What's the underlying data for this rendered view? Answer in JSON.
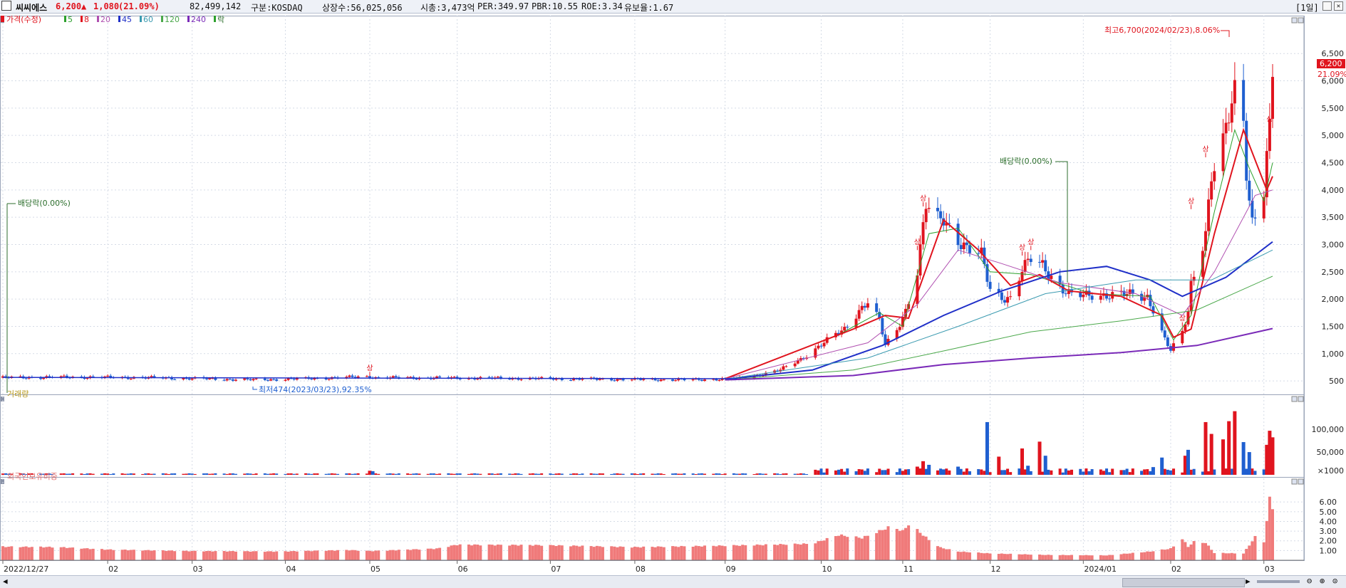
{
  "header": {
    "name": "씨씨에스",
    "price": "6,200",
    "change_arrow": "▲",
    "change": "1,080",
    "change_pct": "(21.09%)",
    "volume": "82,499,142",
    "market": "구분:KOSDAQ",
    "shares": "상장수:56,025,056",
    "mcap": "시총:3,473억",
    "per": "PER:349.97",
    "pbr": "PBR:10.55",
    "roe": "ROE:3.34",
    "reserve": "유보율:1.67",
    "period": "[1일]"
  },
  "legend": {
    "price": "가격(수정)",
    "ma5": "5",
    "ma8": "8",
    "ma20": "20",
    "ma45": "45",
    "ma60": "60",
    "ma120": "120",
    "ma240": "240",
    "drop": "락"
  },
  "annotations": {
    "max": "최고6,700(2024/02/23),8.06%",
    "min": "최저474(2023/03/23),92.35%",
    "div1": "배당락(0.00%)",
    "div2": "배당락(0.00%)"
  },
  "price_badge": {
    "value": "6,200",
    "pct": "21.09%"
  },
  "panels": {
    "volume_title": "거래량",
    "foreign_title": "외국인보유비중"
  },
  "colors": {
    "up": "#e0141e",
    "down": "#1f5fd0",
    "ma5": "#2ca02c",
    "ma8": "#e0141e",
    "ma20": "#b04fb0",
    "ma45": "#1f2fc8",
    "ma60": "#3a9ab0",
    "ma120": "#4aa84a",
    "ma240": "#7a2ab8",
    "foreign": "#f07a7a"
  },
  "chart_data": [
    {
      "type": "candlestick",
      "title": "씨씨에스",
      "y_ticks": [
        500,
        1000,
        1500,
        2000,
        2500,
        3000,
        3500,
        4000,
        4500,
        5000,
        5500,
        6000,
        6500
      ],
      "y_tick_labels": [
        "500",
        "1,000",
        "1,500",
        "2,000",
        "2,500",
        "3,000",
        "3,500",
        "4,000",
        "4,500",
        "5,000",
        "5,500",
        "6,000",
        "6,500"
      ],
      "ylim": [
        280,
        6920
      ],
      "x_start": "2022-12-27",
      "x_end": "2024-03-07",
      "x_ticks": [
        {
          "date": "2022-12-27",
          "label": "2022/12/27"
        },
        {
          "date": "2023-02-01",
          "label": "02"
        },
        {
          "date": "2023-03-02",
          "label": "03"
        },
        {
          "date": "2023-04-03",
          "label": "04"
        },
        {
          "date": "2023-05-02",
          "label": "05"
        },
        {
          "date": "2023-06-01",
          "label": "06"
        },
        {
          "date": "2023-07-03",
          "label": "07"
        },
        {
          "date": "2023-08-01",
          "label": "08"
        },
        {
          "date": "2023-09-01",
          "label": "09"
        },
        {
          "date": "2023-10-04",
          "label": "10"
        },
        {
          "date": "2023-11-01",
          "label": "11"
        },
        {
          "date": "2023-12-01",
          "label": "12"
        },
        {
          "date": "2024-01-02",
          "label": "2024/01"
        },
        {
          "date": "2024-02-01",
          "label": "02"
        },
        {
          "date": "2024-03-04",
          "label": "03"
        }
      ],
      "close_path": [
        [
          "2022-12-27",
          560
        ],
        [
          "2023-01-20",
          570
        ],
        [
          "2023-02-15",
          560
        ],
        [
          "2023-03-23",
          520
        ],
        [
          "2023-04-10",
          540
        ],
        [
          "2023-05-02",
          580
        ],
        [
          "2023-05-04",
          560
        ],
        [
          "2023-06-15",
          550
        ],
        [
          "2023-07-20",
          530
        ],
        [
          "2023-08-20",
          520
        ],
        [
          "2023-09-05",
          540
        ],
        [
          "2023-09-12",
          600
        ],
        [
          "2023-09-20",
          700
        ],
        [
          "2023-09-27",
          900
        ],
        [
          "2023-10-05",
          1200
        ],
        [
          "2023-10-12",
          1450
        ],
        [
          "2023-10-17",
          1800
        ],
        [
          "2023-10-20",
          1950
        ],
        [
          "2023-10-24",
          1600
        ],
        [
          "2023-10-26",
          1150
        ],
        [
          "2023-10-30",
          1450
        ],
        [
          "2023-11-02",
          1800
        ],
        [
          "2023-11-06",
          2500
        ],
        [
          "2023-11-08",
          3300
        ],
        [
          "2023-11-09",
          3700
        ],
        [
          "2023-11-13",
          3450
        ],
        [
          "2023-11-15",
          3500
        ],
        [
          "2023-11-20",
          3100
        ],
        [
          "2023-11-23",
          2900
        ],
        [
          "2023-11-28",
          2800
        ],
        [
          "2023-12-01",
          2200
        ],
        [
          "2023-12-05",
          2050
        ],
        [
          "2023-12-08",
          2000
        ],
        [
          "2023-12-12",
          2500
        ],
        [
          "2023-12-15",
          2750
        ],
        [
          "2023-12-19",
          2650
        ],
        [
          "2023-12-21",
          2500
        ],
        [
          "2023-12-26",
          2150
        ],
        [
          "2023-12-29",
          2050
        ],
        [
          "2024-01-05",
          2100
        ],
        [
          "2024-01-12",
          2050
        ],
        [
          "2024-01-19",
          2100
        ],
        [
          "2024-01-24",
          2050
        ],
        [
          "2024-01-26",
          1800
        ],
        [
          "2024-01-30",
          1250
        ],
        [
          "2024-02-01",
          1050
        ],
        [
          "2024-02-05",
          1400
        ],
        [
          "2024-02-07",
          1800
        ],
        [
          "2024-02-08",
          2300
        ],
        [
          "2024-02-13",
          3200
        ],
        [
          "2024-02-15",
          4200
        ],
        [
          "2024-02-19",
          4800
        ],
        [
          "2024-02-21",
          5400
        ],
        [
          "2024-02-23",
          5900
        ],
        [
          "2024-02-26",
          5400
        ],
        [
          "2024-02-27",
          4400
        ],
        [
          "2024-02-28",
          3800
        ],
        [
          "2024-02-29",
          3400
        ],
        [
          "2024-03-04",
          3900
        ],
        [
          "2024-03-05",
          4500
        ],
        [
          "2024-03-06",
          5120
        ],
        [
          "2024-03-07",
          6200
        ]
      ],
      "moving_averages": [
        {
          "name": "5",
          "color": "ma5",
          "width": 1,
          "points": [
            [
              "2023-09-01",
              540
            ],
            [
              "2023-10-10",
              1350
            ],
            [
              "2023-10-24",
              1750
            ],
            [
              "2023-11-01",
              1500
            ],
            [
              "2023-11-10",
              3200
            ],
            [
              "2023-11-20",
              3300
            ],
            [
              "2023-12-01",
              2500
            ],
            [
              "2023-12-15",
              2450
            ],
            [
              "2024-01-05",
              2100
            ],
            [
              "2024-01-25",
              2050
            ],
            [
              "2024-02-02",
              1250
            ],
            [
              "2024-02-08",
              1700
            ],
            [
              "2024-02-16",
              3600
            ],
            [
              "2024-02-23",
              5100
            ],
            [
              "2024-02-28",
              4400
            ],
            [
              "2024-03-04",
              3800
            ],
            [
              "2024-03-07",
              4500
            ]
          ]
        },
        {
          "name": "8",
          "color": "ma8",
          "width": 2,
          "points": [
            [
              "2023-09-01",
              540
            ],
            [
              "2023-10-15",
              1450
            ],
            [
              "2023-10-26",
              1700
            ],
            [
              "2023-11-03",
              1650
            ],
            [
              "2023-11-15",
              3450
            ],
            [
              "2023-11-27",
              2900
            ],
            [
              "2023-12-08",
              2250
            ],
            [
              "2023-12-18",
              2450
            ],
            [
              "2023-12-28",
              2150
            ],
            [
              "2024-01-15",
              2050
            ],
            [
              "2024-01-29",
              1700
            ],
            [
              "2024-02-02",
              1300
            ],
            [
              "2024-02-08",
              1450
            ],
            [
              "2024-02-16",
              3200
            ],
            [
              "2024-02-26",
              5100
            ],
            [
              "2024-03-05",
              4000
            ],
            [
              "2024-03-07",
              4250
            ]
          ]
        },
        {
          "name": "20",
          "color": "ma20",
          "width": 1,
          "points": [
            [
              "2023-09-01",
              540
            ],
            [
              "2023-10-20",
              1200
            ],
            [
              "2023-11-06",
              1900
            ],
            [
              "2023-11-20",
              2900
            ],
            [
              "2023-12-05",
              2650
            ],
            [
              "2023-12-25",
              2300
            ],
            [
              "2024-01-20",
              2100
            ],
            [
              "2024-02-05",
              1700
            ],
            [
              "2024-02-16",
              2500
            ],
            [
              "2024-03-01",
              3900
            ],
            [
              "2024-03-07",
              4000
            ]
          ]
        },
        {
          "name": "45",
          "color": "ma45",
          "width": 2,
          "points": [
            [
              "2023-09-01",
              530
            ],
            [
              "2023-10-01",
              700
            ],
            [
              "2023-10-25",
              1150
            ],
            [
              "2023-11-15",
              1700
            ],
            [
              "2023-12-05",
              2150
            ],
            [
              "2023-12-25",
              2500
            ],
            [
              "2024-01-10",
              2600
            ],
            [
              "2024-01-25",
              2350
            ],
            [
              "2024-02-05",
              2050
            ],
            [
              "2024-02-20",
              2400
            ],
            [
              "2024-03-07",
              3050
            ]
          ]
        },
        {
          "name": "60",
          "color": "ma60",
          "width": 1,
          "points": [
            [
              "2023-09-01",
              530
            ],
            [
              "2023-10-20",
              920
            ],
            [
              "2023-11-20",
              1500
            ],
            [
              "2023-12-20",
              2100
            ],
            [
              "2024-01-20",
              2350
            ],
            [
              "2024-02-15",
              2350
            ],
            [
              "2024-03-07",
              2900
            ]
          ]
        },
        {
          "name": "120",
          "color": "ma120",
          "width": 1,
          "points": [
            [
              "2023-09-01",
              520
            ],
            [
              "2023-10-15",
              700
            ],
            [
              "2023-11-15",
              1050
            ],
            [
              "2023-12-15",
              1400
            ],
            [
              "2024-01-15",
              1600
            ],
            [
              "2024-02-10",
              1800
            ],
            [
              "2024-03-07",
              2420
            ]
          ]
        },
        {
          "name": "240",
          "color": "ma240",
          "width": 2,
          "points": [
            [
              "2023-09-01",
              520
            ],
            [
              "2023-10-15",
              600
            ],
            [
              "2023-11-15",
              800
            ],
            [
              "2023-12-15",
              920
            ],
            [
              "2024-01-15",
              1020
            ],
            [
              "2024-02-10",
              1150
            ],
            [
              "2024-03-07",
              1460
            ]
          ]
        }
      ],
      "markers": [
        {
          "date": "2023-05-02",
          "price": 640,
          "label": "상"
        },
        {
          "date": "2023-11-06",
          "price": 2950,
          "label": "상"
        },
        {
          "date": "2023-11-08",
          "price": 3750,
          "label": "상"
        },
        {
          "date": "2023-12-12",
          "price": 2850,
          "label": "상"
        },
        {
          "date": "2023-12-15",
          "price": 2950,
          "label": "상"
        },
        {
          "date": "2024-02-05",
          "price": 1550,
          "label": "상"
        },
        {
          "date": "2024-02-08",
          "price": 3700,
          "label": "상"
        },
        {
          "date": "2024-02-13",
          "price": 4650,
          "label": "상"
        },
        {
          "date": "2024-03-06",
          "price": 5200,
          "label": "상"
        }
      ]
    },
    {
      "type": "bar",
      "title": "거래량",
      "y_tick_labels": [
        "100,000",
        "50,000",
        "×1000"
      ],
      "y_ticks": [
        100000,
        50000,
        0
      ],
      "ylim": [
        0,
        130000
      ],
      "bars": [
        [
          "2023-05-02",
          9000,
          "up"
        ],
        [
          "2023-05-03",
          8000,
          "down"
        ],
        [
          "2023-11-06",
          18000,
          "up"
        ],
        [
          "2023-11-08",
          30000,
          "up"
        ],
        [
          "2023-11-10",
          22000,
          "down"
        ],
        [
          "2023-11-15",
          12000,
          "down"
        ],
        [
          "2023-11-20",
          18000,
          "down"
        ],
        [
          "2023-11-30",
          116000,
          "down"
        ],
        [
          "2023-12-04",
          40000,
          "up"
        ],
        [
          "2023-12-12",
          58000,
          "up"
        ],
        [
          "2023-12-14",
          20000,
          "down"
        ],
        [
          "2023-12-18",
          73000,
          "up"
        ],
        [
          "2023-12-20",
          42000,
          "down"
        ],
        [
          "2024-01-26",
          17000,
          "down"
        ],
        [
          "2024-01-29",
          38000,
          "down"
        ],
        [
          "2024-02-06",
          42000,
          "up"
        ],
        [
          "2024-02-07",
          55000,
          "down"
        ],
        [
          "2024-02-13",
          116000,
          "up"
        ],
        [
          "2024-02-15",
          90000,
          "up"
        ],
        [
          "2024-02-19",
          78000,
          "up"
        ],
        [
          "2024-02-21",
          118000,
          "up"
        ],
        [
          "2024-02-23",
          140000,
          "up"
        ],
        [
          "2024-02-26",
          72000,
          "down"
        ],
        [
          "2024-02-28",
          50000,
          "down"
        ],
        [
          "2024-03-05",
          66000,
          "up"
        ],
        [
          "2024-03-06",
          97000,
          "up"
        ],
        [
          "2024-03-07",
          82499,
          "up"
        ]
      ]
    },
    {
      "type": "bar",
      "title": "외국인보유비중",
      "y_tick_labels": [
        "6.00",
        "5.00",
        "4.00",
        "3.00",
        "2.00",
        "1.00"
      ],
      "y_ticks": [
        6,
        5,
        4,
        3,
        2,
        1
      ],
      "ylim": [
        0,
        6.6
      ],
      "segments": [
        [
          "2022-12-27",
          1.4
        ],
        [
          "2023-01-15",
          1.35
        ],
        [
          "2023-02-01",
          1.1
        ],
        [
          "2023-03-01",
          0.95
        ],
        [
          "2023-04-01",
          0.9
        ],
        [
          "2023-04-25",
          1.05
        ],
        [
          "2023-05-02",
          0.95
        ],
        [
          "2023-05-25",
          1.2
        ],
        [
          "2023-06-01",
          1.6
        ],
        [
          "2023-07-01",
          1.55
        ],
        [
          "2023-08-01",
          1.35
        ],
        [
          "2023-09-01",
          1.5
        ],
        [
          "2023-10-01",
          1.7
        ],
        [
          "2023-10-10",
          2.6
        ],
        [
          "2023-10-18",
          2.3
        ],
        [
          "2023-10-24",
          3.0
        ],
        [
          "2023-10-28",
          3.5
        ],
        [
          "2023-11-01",
          3.0
        ],
        [
          "2023-11-03",
          3.7
        ],
        [
          "2023-11-06",
          3.1
        ],
        [
          "2023-11-10",
          2.1
        ],
        [
          "2023-11-14",
          1.3
        ],
        [
          "2023-11-20",
          0.9
        ],
        [
          "2023-12-01",
          0.7
        ],
        [
          "2023-12-20",
          0.55
        ],
        [
          "2024-01-10",
          0.5
        ],
        [
          "2024-01-25",
          0.9
        ],
        [
          "2024-02-01",
          1.2
        ],
        [
          "2024-02-05",
          2.2
        ],
        [
          "2024-02-07",
          1.4
        ],
        [
          "2024-02-09",
          1.9
        ],
        [
          "2024-02-13",
          1.8
        ],
        [
          "2024-02-16",
          0.75
        ],
        [
          "2024-02-26",
          0.7
        ],
        [
          "2024-03-01",
          2.4
        ],
        [
          "2024-03-04",
          1.9
        ],
        [
          "2024-03-06",
          6.3
        ],
        [
          "2024-03-07",
          5.4
        ]
      ]
    }
  ]
}
